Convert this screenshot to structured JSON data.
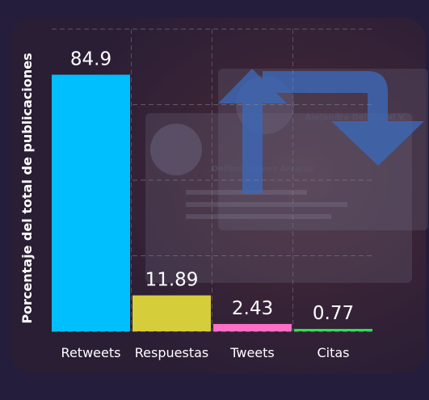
{
  "chart_data": {
    "type": "bar",
    "categories": [
      "Retweets",
      "Respuestas",
      "Tweets",
      "Citas"
    ],
    "values": [
      84.9,
      11.89,
      2.43,
      0.77
    ],
    "value_labels": [
      "84.9",
      "11.89",
      "2.43",
      "0.77"
    ],
    "title": "",
    "xlabel": "",
    "ylabel": "Porcentaje del total de publicaciones",
    "ylim": [
      0,
      100
    ],
    "grid": true,
    "legend": "none",
    "colors": [
      "#00bfff",
      "#d5cd3a",
      "#ff6fc6",
      "#2ee04f"
    ]
  },
  "background": {
    "panel_color": "#3a2333",
    "retweet_icon_color": "#3d68b8",
    "watermark_names": [
      "Alejandra Del Moral V.",
      "Delfina Gómez Álvarez"
    ]
  }
}
